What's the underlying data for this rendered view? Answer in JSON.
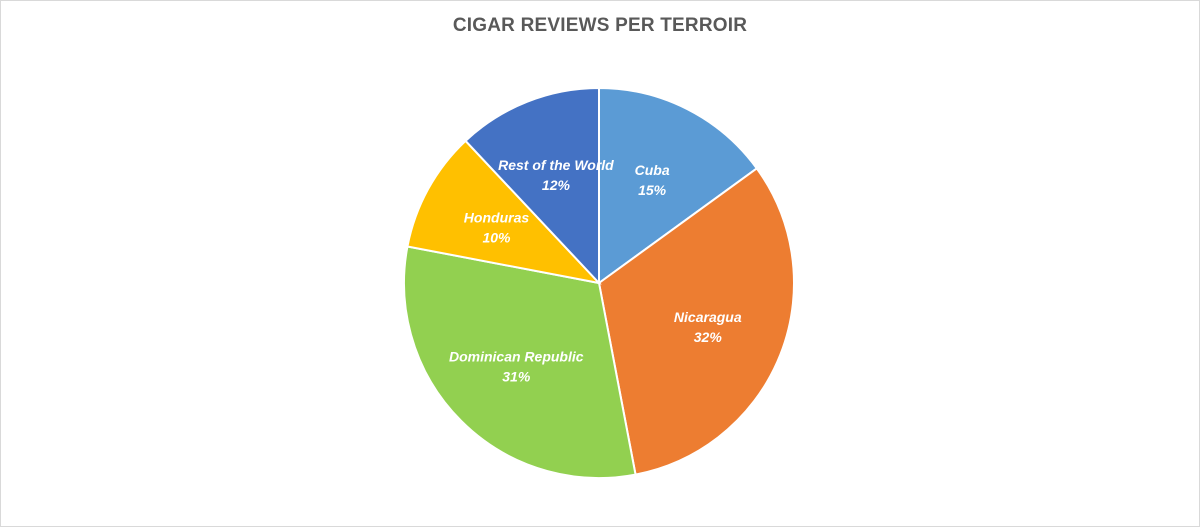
{
  "chart_data": {
    "type": "pie",
    "title": "CIGAR REVIEWS PER TERROIR",
    "start_angle_deg": 0,
    "direction": "clockwise",
    "slices": [
      {
        "label": "Cuba",
        "value": 15,
        "value_label": "15%",
        "color": "#5b9bd5"
      },
      {
        "label": "Nicaragua",
        "value": 32,
        "value_label": "32%",
        "color": "#ed7d31"
      },
      {
        "label": "Dominican Republic",
        "value": 31,
        "value_label": "31%",
        "color": "#92d050"
      },
      {
        "label": "Honduras",
        "value": 10,
        "value_label": "10%",
        "color": "#ffc000"
      },
      {
        "label": "Rest of the World",
        "value": 12,
        "value_label": "12%",
        "color": "#4472c4"
      }
    ],
    "legend": "none",
    "label_color": "#ffffff",
    "slice_border_color": "#ffffff"
  }
}
